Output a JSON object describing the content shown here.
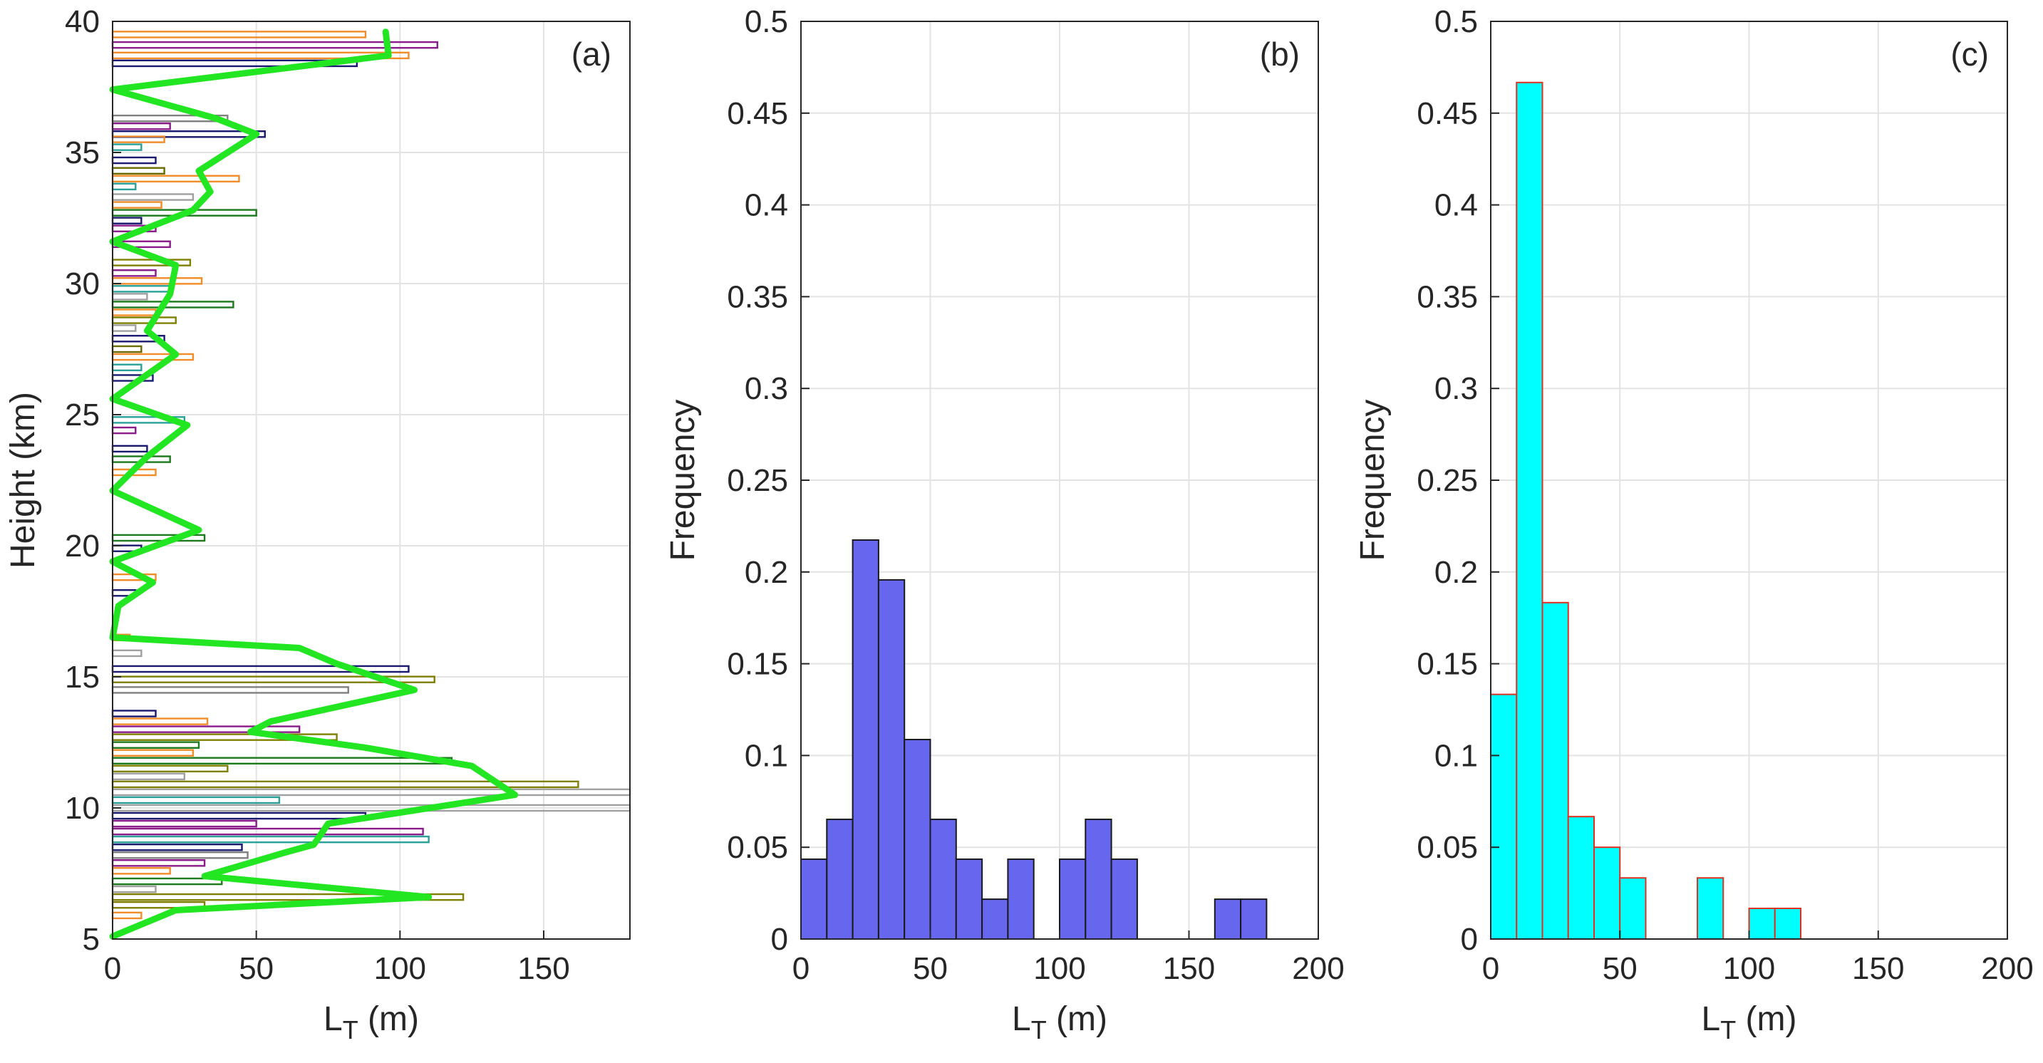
{
  "chart_data": [
    {
      "panel": "(a)",
      "type": "profile",
      "xlabel_main": "L",
      "xlabel_sub": "T",
      "xlabel_unit": " (m)",
      "ylabel": "Height (km)",
      "xlim": [
        0,
        180
      ],
      "ylim": [
        5,
        40
      ],
      "xticks": [
        "0",
        "50",
        "100",
        "150"
      ],
      "yticks": [
        "5",
        "10",
        "15",
        "20",
        "25",
        "30",
        "35",
        "40"
      ],
      "grid": true,
      "profile_color": "#22e622",
      "profile": [
        [
          0,
          5.1
        ],
        [
          22,
          6.1
        ],
        [
          110,
          6.6
        ],
        [
          32,
          7.4
        ],
        [
          60,
          8.3
        ],
        [
          70,
          8.6
        ],
        [
          75,
          9.4
        ],
        [
          140,
          10.5
        ],
        [
          125,
          11.6
        ],
        [
          88,
          12.3
        ],
        [
          48,
          12.9
        ],
        [
          55,
          13.3
        ],
        [
          105,
          14.5
        ],
        [
          78,
          15.5
        ],
        [
          65,
          16.1
        ],
        [
          0,
          16.5
        ],
        [
          2,
          17.7
        ],
        [
          14,
          18.6
        ],
        [
          0,
          19.4
        ],
        [
          30,
          20.6
        ],
        [
          0,
          22.1
        ],
        [
          12,
          23.4
        ],
        [
          26,
          24.6
        ],
        [
          0,
          25.6
        ],
        [
          22,
          27.3
        ],
        [
          12,
          28.2
        ],
        [
          20,
          29.6
        ],
        [
          22,
          30.7
        ],
        [
          0,
          31.6
        ],
        [
          28,
          32.8
        ],
        [
          34,
          33.5
        ],
        [
          30,
          34.3
        ],
        [
          50,
          35.7
        ],
        [
          36,
          36.3
        ],
        [
          0,
          37.4
        ],
        [
          96,
          38.7
        ],
        [
          95,
          39.6
        ]
      ],
      "layers": [
        {
          "h": 39.5,
          "l": 88,
          "c": "#f28c28"
        },
        {
          "h": 39.1,
          "l": 113,
          "c": "#8b1a8b"
        },
        {
          "h": 38.7,
          "l": 103,
          "c": "#f28c28"
        },
        {
          "h": 38.4,
          "l": 85,
          "c": "#191970"
        },
        {
          "h": 36.3,
          "l": 40,
          "c": "#808080"
        },
        {
          "h": 36.0,
          "l": 20,
          "c": "#8b1a8b"
        },
        {
          "h": 35.7,
          "l": 53,
          "c": "#191970"
        },
        {
          "h": 35.5,
          "l": 18,
          "c": "#f28c28"
        },
        {
          "h": 35.2,
          "l": 10,
          "c": "#2aa198"
        },
        {
          "h": 34.7,
          "l": 15,
          "c": "#191970"
        },
        {
          "h": 34.3,
          "l": 18,
          "c": "#6b6b00"
        },
        {
          "h": 34.0,
          "l": 44,
          "c": "#f28c28"
        },
        {
          "h": 33.7,
          "l": 8,
          "c": "#2aa198"
        },
        {
          "h": 33.3,
          "l": 28,
          "c": "#a0a0a0"
        },
        {
          "h": 33.0,
          "l": 17,
          "c": "#f28c28"
        },
        {
          "h": 32.7,
          "l": 50,
          "c": "#1b7a1b"
        },
        {
          "h": 32.4,
          "l": 10,
          "c": "#191970"
        },
        {
          "h": 32.1,
          "l": 15,
          "c": "#8b1a8b"
        },
        {
          "h": 31.5,
          "l": 20,
          "c": "#8b1a8b"
        },
        {
          "h": 30.8,
          "l": 27,
          "c": "#808000"
        },
        {
          "h": 30.4,
          "l": 15,
          "c": "#8b1a8b"
        },
        {
          "h": 30.1,
          "l": 31,
          "c": "#f28c28"
        },
        {
          "h": 29.8,
          "l": 20,
          "c": "#2aa198"
        },
        {
          "h": 29.5,
          "l": 12,
          "c": "#a0a0a0"
        },
        {
          "h": 29.2,
          "l": 42,
          "c": "#1b7a1b"
        },
        {
          "h": 28.9,
          "l": 15,
          "c": "#f28c28"
        },
        {
          "h": 28.6,
          "l": 22,
          "c": "#808000"
        },
        {
          "h": 28.3,
          "l": 8,
          "c": "#a0a0a0"
        },
        {
          "h": 27.9,
          "l": 18,
          "c": "#191970"
        },
        {
          "h": 27.5,
          "l": 10,
          "c": "#6b6b00"
        },
        {
          "h": 27.2,
          "l": 28,
          "c": "#f28c28"
        },
        {
          "h": 26.8,
          "l": 10,
          "c": "#2aa198"
        },
        {
          "h": 26.4,
          "l": 14,
          "c": "#191970"
        },
        {
          "h": 24.8,
          "l": 25,
          "c": "#2aa198"
        },
        {
          "h": 24.4,
          "l": 8,
          "c": "#8b1a8b"
        },
        {
          "h": 23.7,
          "l": 12,
          "c": "#191970"
        },
        {
          "h": 23.3,
          "l": 20,
          "c": "#1b7a1b"
        },
        {
          "h": 22.8,
          "l": 15,
          "c": "#f28c28"
        },
        {
          "h": 20.3,
          "l": 32,
          "c": "#1b7a1b"
        },
        {
          "h": 19.9,
          "l": 10,
          "c": "#191970"
        },
        {
          "h": 18.8,
          "l": 15,
          "c": "#f28c28"
        },
        {
          "h": 18.2,
          "l": 8,
          "c": "#191970"
        },
        {
          "h": 16.5,
          "l": 6,
          "c": "#f28c28"
        },
        {
          "h": 15.9,
          "l": 10,
          "c": "#a0a0a0"
        },
        {
          "h": 15.3,
          "l": 103,
          "c": "#191970"
        },
        {
          "h": 14.9,
          "l": 112,
          "c": "#808000"
        },
        {
          "h": 14.5,
          "l": 82,
          "c": "#808080"
        },
        {
          "h": 13.6,
          "l": 15,
          "c": "#191970"
        },
        {
          "h": 13.3,
          "l": 33,
          "c": "#f28c28"
        },
        {
          "h": 13.0,
          "l": 65,
          "c": "#8b1a8b"
        },
        {
          "h": 12.7,
          "l": 78,
          "c": "#808000"
        },
        {
          "h": 12.4,
          "l": 30,
          "c": "#1b7a1b"
        },
        {
          "h": 12.1,
          "l": 28,
          "c": "#f28c28"
        },
        {
          "h": 11.8,
          "l": 118,
          "c": "#1b7a1b"
        },
        {
          "h": 11.5,
          "l": 40,
          "c": "#808000"
        },
        {
          "h": 11.2,
          "l": 25,
          "c": "#a0a0a0"
        },
        {
          "h": 10.9,
          "l": 162,
          "c": "#808000"
        },
        {
          "h": 10.6,
          "l": 180,
          "c": "#a0a0a0"
        },
        {
          "h": 10.3,
          "l": 58,
          "c": "#2aa198"
        },
        {
          "h": 10.0,
          "l": 180,
          "c": "#a0a0a0"
        },
        {
          "h": 9.7,
          "l": 88,
          "c": "#191970"
        },
        {
          "h": 9.4,
          "l": 50,
          "c": "#8b1a8b"
        },
        {
          "h": 9.1,
          "l": 108,
          "c": "#8b1a8b"
        },
        {
          "h": 8.8,
          "l": 110,
          "c": "#2aa198"
        },
        {
          "h": 8.5,
          "l": 45,
          "c": "#191970"
        },
        {
          "h": 8.2,
          "l": 47,
          "c": "#808080"
        },
        {
          "h": 7.9,
          "l": 32,
          "c": "#8b1a8b"
        },
        {
          "h": 7.6,
          "l": 20,
          "c": "#f28c28"
        },
        {
          "h": 7.2,
          "l": 38,
          "c": "#1b7a1b"
        },
        {
          "h": 6.9,
          "l": 15,
          "c": "#a0a0a0"
        },
        {
          "h": 6.6,
          "l": 122,
          "c": "#808000"
        },
        {
          "h": 6.3,
          "l": 32,
          "c": "#808000"
        },
        {
          "h": 5.9,
          "l": 10,
          "c": "#f28c28"
        }
      ]
    },
    {
      "panel": "(b)",
      "type": "bar",
      "xlabel_main": "L",
      "xlabel_sub": "T",
      "xlabel_unit": " (m)",
      "ylabel": "Frequency",
      "xlim": [
        0,
        200
      ],
      "ylim": [
        0,
        0.5
      ],
      "xticks": [
        "0",
        "50",
        "100",
        "150",
        "200"
      ],
      "yticks": [
        "0",
        "0.05",
        "0.1",
        "0.15",
        "0.2",
        "0.25",
        "0.3",
        "0.35",
        "0.4",
        "0.45",
        "0.5"
      ],
      "bin_width": 10,
      "bin_starts": [
        0,
        10,
        20,
        30,
        40,
        50,
        60,
        70,
        80,
        90,
        100,
        110,
        120,
        130,
        140,
        150,
        160,
        170,
        180,
        190
      ],
      "values": [
        0.0435,
        0.0652,
        0.2174,
        0.1957,
        0.1087,
        0.0652,
        0.0435,
        0.0217,
        0.0435,
        0,
        0.0435,
        0.0652,
        0.0435,
        0,
        0,
        0,
        0.0217,
        0.0217,
        0,
        0
      ],
      "fill": "#6666ee",
      "edge": "#1a1a1a",
      "grid": true
    },
    {
      "panel": "(c)",
      "type": "bar",
      "xlabel_main": "L",
      "xlabel_sub": "T",
      "xlabel_unit": " (m)",
      "ylabel": "Frequency",
      "xlim": [
        0,
        200
      ],
      "ylim": [
        0,
        0.5
      ],
      "xticks": [
        "0",
        "50",
        "100",
        "150",
        "200"
      ],
      "yticks": [
        "0",
        "0.05",
        "0.1",
        "0.15",
        "0.2",
        "0.25",
        "0.3",
        "0.35",
        "0.4",
        "0.45",
        "0.5"
      ],
      "bin_width": 10,
      "bin_starts": [
        0,
        10,
        20,
        30,
        40,
        50,
        60,
        70,
        80,
        90,
        100,
        110,
        120,
        130,
        140,
        150,
        160,
        170,
        180,
        190
      ],
      "values": [
        0.1333,
        0.4667,
        0.1833,
        0.0667,
        0.05,
        0.0333,
        0,
        0,
        0.0333,
        0,
        0.0167,
        0.0167,
        0,
        0,
        0,
        0,
        0,
        0,
        0,
        0
      ],
      "fill": "#00ffff",
      "edge": "#e03020",
      "grid": true
    }
  ]
}
